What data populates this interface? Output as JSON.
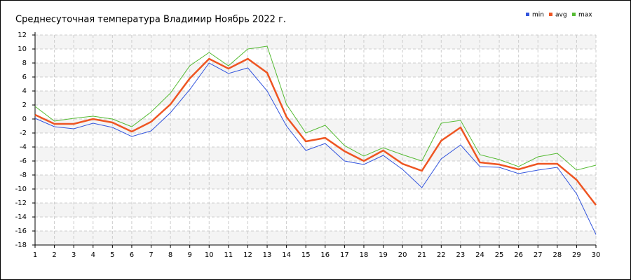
{
  "chart_data": {
    "type": "line",
    "title": "Среднесуточная температура Владимир  Ноябрь 2022 г.",
    "x": [
      1,
      2,
      3,
      4,
      5,
      6,
      7,
      8,
      9,
      10,
      11,
      12,
      13,
      14,
      15,
      16,
      17,
      18,
      19,
      20,
      21,
      22,
      23,
      24,
      25,
      26,
      27,
      28,
      29,
      30
    ],
    "series": [
      {
        "name": "min",
        "color": "#3355dd",
        "values": [
          0.1,
          -1.1,
          -1.4,
          -0.6,
          -1.2,
          -2.5,
          -1.7,
          0.9,
          4.2,
          8.0,
          6.5,
          7.3,
          4.0,
          -1.0,
          -4.5,
          -3.5,
          -6.0,
          -6.5,
          -5.2,
          -7.2,
          -9.8,
          -5.7,
          -3.7,
          -6.8,
          -6.9,
          -7.8,
          -7.3,
          -6.9,
          -10.7,
          -16.5
        ]
      },
      {
        "name": "avg",
        "color": "#ee5522",
        "values": [
          0.6,
          -0.7,
          -0.7,
          0.0,
          -0.5,
          -1.8,
          -0.4,
          2.1,
          5.8,
          8.6,
          7.2,
          8.6,
          6.6,
          0.3,
          -3.2,
          -2.7,
          -4.6,
          -6.0,
          -4.5,
          -6.4,
          -7.4,
          -3.1,
          -1.2,
          -6.2,
          -6.5,
          -7.2,
          -6.4,
          -6.4,
          -8.7,
          -12.3
        ]
      },
      {
        "name": "max",
        "color": "#55bb33",
        "values": [
          1.8,
          -0.3,
          0.1,
          0.4,
          0.0,
          -1.1,
          1.0,
          3.7,
          7.6,
          9.5,
          7.6,
          10.0,
          10.4,
          2.1,
          -2.0,
          -0.9,
          -3.8,
          -5.3,
          -4.1,
          -5.1,
          -6.0,
          -0.6,
          -0.2,
          -5.1,
          -5.8,
          -6.8,
          -5.4,
          -4.9,
          -7.3,
          -6.6
        ]
      }
    ],
    "xlim": [
      1,
      30
    ],
    "xticks": [
      1,
      2,
      3,
      4,
      5,
      6,
      7,
      8,
      9,
      10,
      11,
      12,
      13,
      14,
      15,
      16,
      17,
      18,
      19,
      20,
      21,
      22,
      23,
      24,
      25,
      26,
      27,
      28,
      29,
      30
    ],
    "ylim": [
      -18,
      12
    ],
    "yticks": [
      -18,
      -16,
      -14,
      -12,
      -10,
      -8,
      -6,
      -4,
      -2,
      0,
      2,
      4,
      6,
      8,
      10,
      12
    ],
    "grid": true,
    "legend": "top-right"
  }
}
